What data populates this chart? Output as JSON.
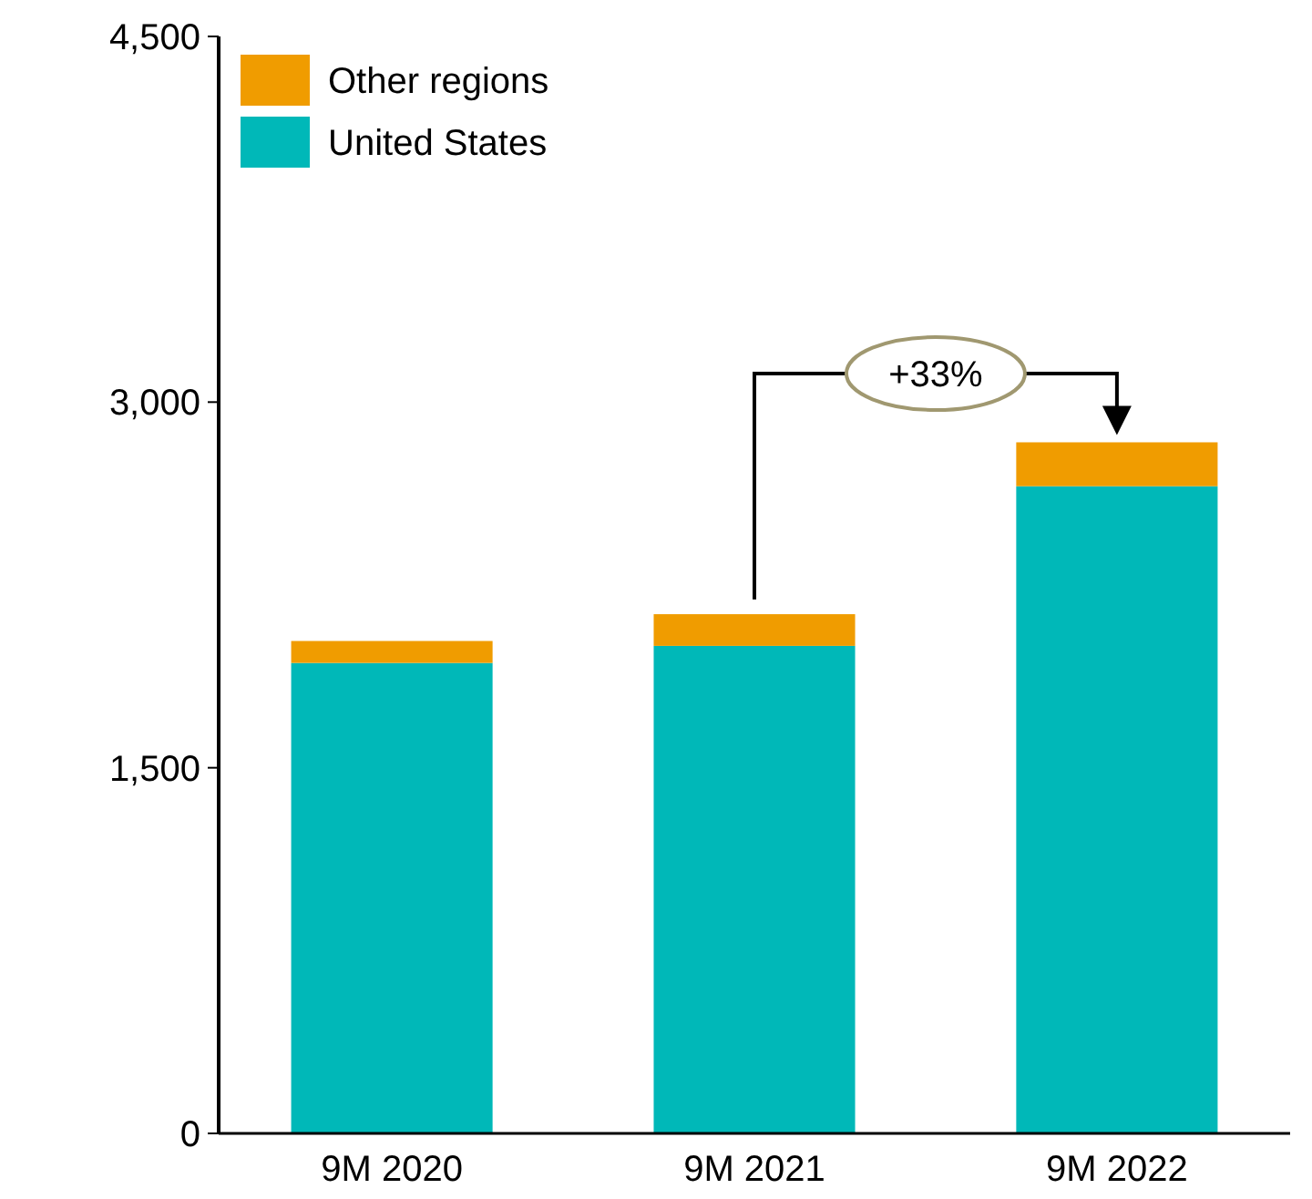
{
  "chart_data": {
    "type": "bar",
    "stacked": true,
    "categories": [
      "9M 2020",
      "9M 2021",
      "9M 2022"
    ],
    "series": [
      {
        "name": "United States",
        "color": "#00b8b8",
        "values": [
          1930,
          2000,
          2655
        ]
      },
      {
        "name": "Other regions",
        "color": "#f09c00",
        "values": [
          90,
          130,
          180
        ]
      }
    ],
    "ylim": [
      0,
      4500
    ],
    "yticks": [
      {
        "value": 0,
        "label": "0"
      },
      {
        "value": 1500,
        "label": "1,500"
      },
      {
        "value": 3000,
        "label": "3,000"
      },
      {
        "value": 4500,
        "label": "4,500"
      }
    ],
    "legend": "top left",
    "annotations": [
      "+33%"
    ]
  }
}
